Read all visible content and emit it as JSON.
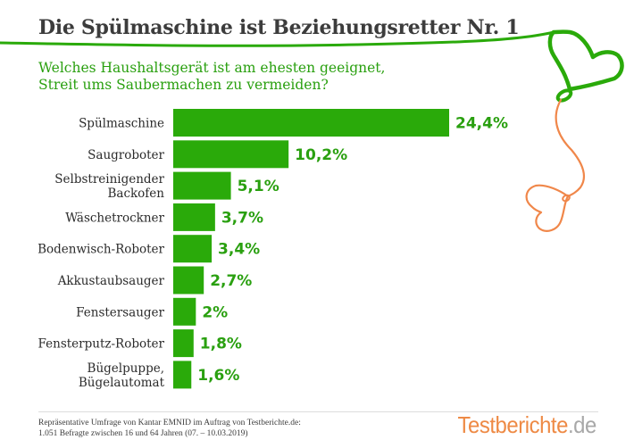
{
  "header": {
    "title": "Die Spülmaschine ist Beziehungsretter Nr. 1",
    "subtitle_line1": "Welches Haushaltsgerät ist am ehesten geeignet,",
    "subtitle_line2": "Streit ums Saubermachen zu vermeiden?"
  },
  "colors": {
    "bar": "#2aaa0a",
    "value_text": "#2aa010",
    "heart_green": "#2aaa0a",
    "heart_orange": "#f0874a",
    "brand_orange": "#ee8a45",
    "brand_gray": "#a8a8a8"
  },
  "chart_data": {
    "type": "bar",
    "orientation": "horizontal",
    "title": "Die Spülmaschine ist Beziehungsretter Nr. 1",
    "subtitle": "Welches Haushaltsgerät ist am ehesten geeignet, Streit ums Saubermachen zu vermeiden?",
    "xlabel": "",
    "ylabel": "",
    "grid": false,
    "unit": "%",
    "categories": [
      [
        "Spülmaschine"
      ],
      [
        "Saugroboter"
      ],
      [
        "Selbstreinigender",
        "Backofen"
      ],
      [
        "Wäschetrockner"
      ],
      [
        "Bodenwisch-Roboter"
      ],
      [
        "Akkustaubsauger"
      ],
      [
        "Fenstersauger"
      ],
      [
        "Fensterputz-Roboter"
      ],
      [
        "Bügelpuppe,",
        "Bügelautomat"
      ]
    ],
    "values": [
      24.4,
      10.2,
      5.1,
      3.7,
      3.4,
      2.7,
      2.0,
      1.8,
      1.6
    ],
    "value_labels": [
      "24,4%",
      "10,2%",
      "5,1%",
      "3,7%",
      "3,4%",
      "2,7%",
      "2%",
      "1,8%",
      "1,6%"
    ],
    "xlim": [
      0,
      24.4
    ]
  },
  "footer": {
    "source_line1": "Repräsentative Umfrage von Kantar EMNID im Auftrag von Testberichte.de:",
    "source_line2": "1.051 Befragte zwischen 16 und 64 Jahren (07. – 10.03.2019)",
    "brand_main": "Testberichte",
    "brand_suffix": ".de"
  }
}
